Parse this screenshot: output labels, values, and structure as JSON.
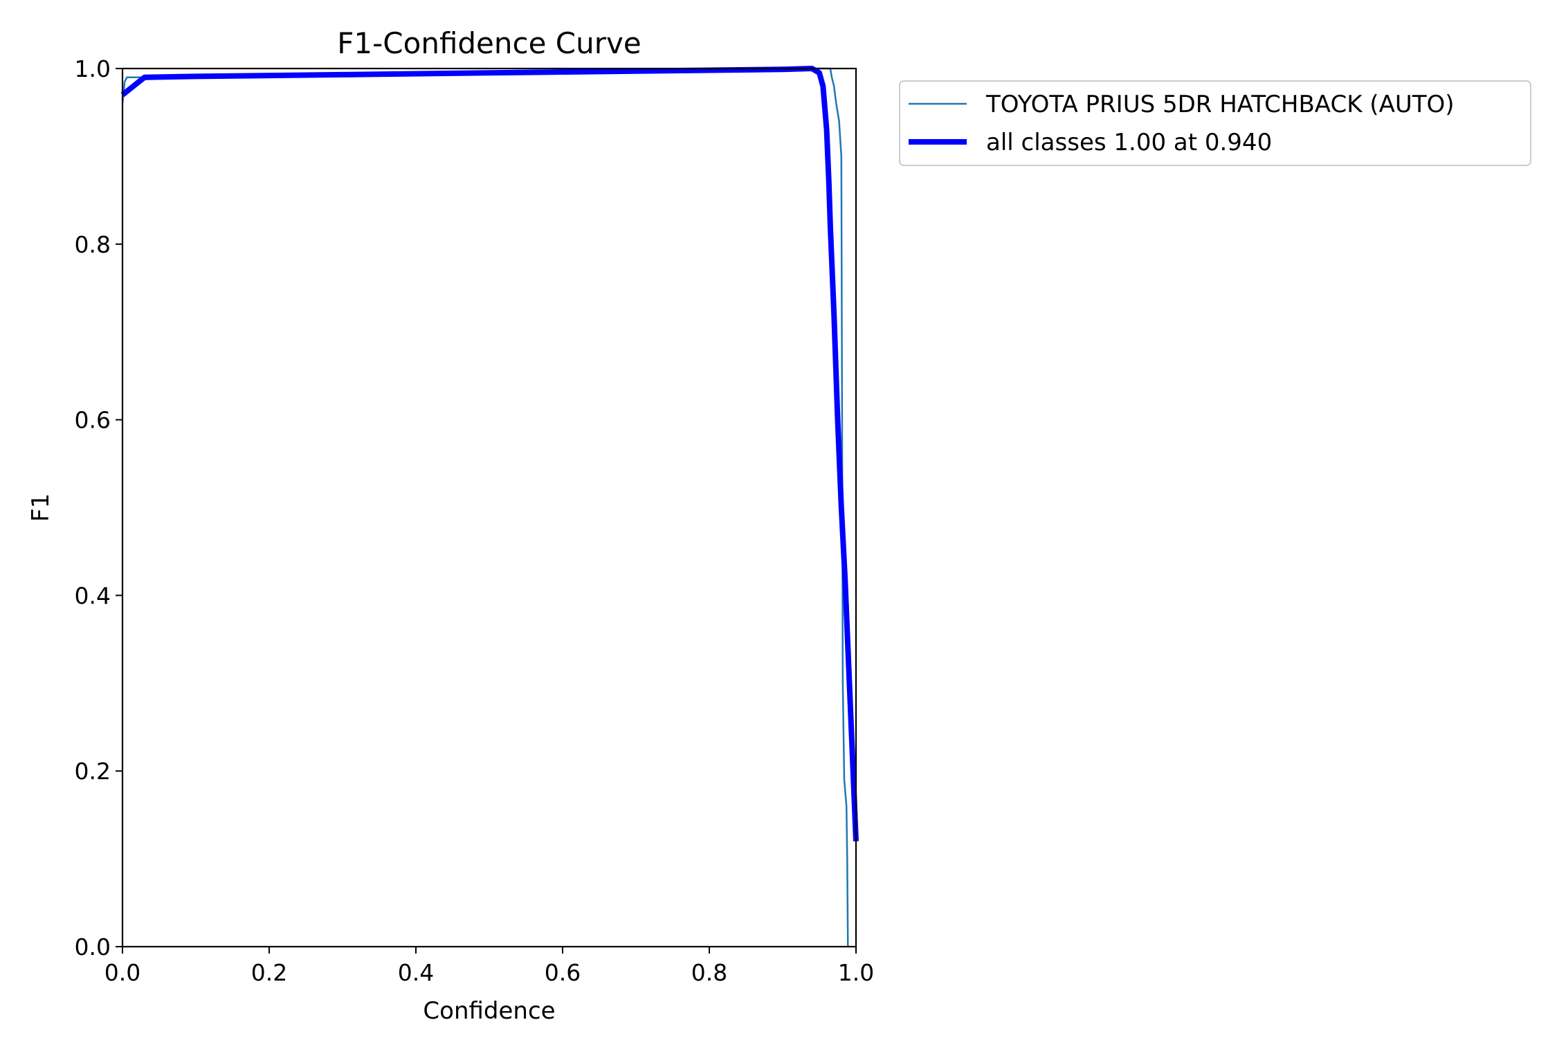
{
  "chart_data": {
    "type": "line",
    "title": "F1-Confidence Curve",
    "xlabel": "Confidence",
    "ylabel": "F1",
    "xlim": [
      0.0,
      1.0
    ],
    "ylim": [
      0.0,
      1.0
    ],
    "xticks": [
      "0.0",
      "0.2",
      "0.4",
      "0.6",
      "0.8",
      "1.0"
    ],
    "yticks": [
      "0.0",
      "0.2",
      "0.4",
      "0.6",
      "0.8",
      "1.0"
    ],
    "grid": false,
    "legend": {
      "placement": "outside-top-right"
    },
    "series": [
      {
        "name": "TOYOTA PRIUS 5DR HATCHBACK (AUTO)",
        "color": "#1f77b4",
        "width": "thin",
        "x": [
          0.0,
          0.003,
          0.006,
          0.03,
          0.2,
          0.5,
          0.8,
          0.94,
          0.965,
          0.967,
          0.97,
          0.973,
          0.975,
          0.977,
          0.98,
          0.981,
          0.982,
          0.984,
          0.985,
          0.987,
          0.988,
          0.989
        ],
        "y": [
          0.96,
          0.985,
          0.99,
          0.99,
          0.993,
          0.996,
          0.999,
          1.0,
          1.0,
          0.99,
          0.98,
          0.96,
          0.95,
          0.94,
          0.9,
          0.6,
          0.3,
          0.19,
          0.18,
          0.16,
          0.1,
          0.0
        ]
      },
      {
        "name": "all classes 1.00 at 0.940",
        "color": "#0000ff",
        "width": "thick",
        "x": [
          0.0,
          0.03,
          0.1,
          0.3,
          0.5,
          0.7,
          0.9,
          0.94,
          0.95,
          0.955,
          0.96,
          0.963,
          0.965,
          0.97,
          0.975,
          0.98,
          0.985,
          0.99,
          0.995,
          1.0
        ],
        "y": [
          0.97,
          0.99,
          0.991,
          0.993,
          0.995,
          0.997,
          0.999,
          1.0,
          0.995,
          0.98,
          0.93,
          0.87,
          0.82,
          0.72,
          0.6,
          0.5,
          0.42,
          0.32,
          0.22,
          0.12
        ]
      }
    ]
  }
}
